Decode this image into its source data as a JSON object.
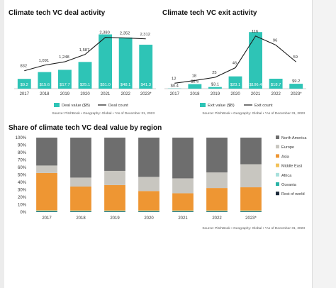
{
  "colors": {
    "teal": "#2ec4b6",
    "line": "#1a1a1a",
    "north_america": "#6e6e6e",
    "europe": "#c8c6c0",
    "asia": "#ee9633",
    "middle_east": "#f2c25a",
    "africa": "#a8e0dc",
    "oceania": "#2ab3a6",
    "rest_of_world": "#1b2a3a"
  },
  "chart_data": [
    {
      "type": "bar",
      "title": "Climate tech VC deal activity",
      "categories": [
        "2017",
        "2018",
        "2019",
        "2020",
        "2021",
        "2022",
        "2023*"
      ],
      "series": [
        {
          "name": "Deal value ($B)",
          "values": [
            9.2,
            15.6,
            17.7,
            25.1,
            51.0,
            48.1,
            41.3
          ],
          "labels": [
            "$9.2",
            "$15.6",
            "$17.7",
            "$25.1",
            "$51.0",
            "$48.1",
            "$41.3"
          ]
        },
        {
          "name": "Deal count",
          "type": "line",
          "values": [
            832,
            1091,
            1248,
            1587,
            2380,
            2352,
            2312
          ],
          "labels": [
            "832",
            "1,091",
            "1,248",
            "1,587",
            "2,380",
            "2,352",
            "2,312"
          ]
        }
      ],
      "ylim_bars": [
        0,
        60
      ],
      "ylim_line": [
        0,
        2600
      ],
      "legend": "bottom",
      "source": "Source: PitchBook • Geography: Global • *As of December 31, 2023"
    },
    {
      "type": "bar",
      "title": "Climate tech VC exit activity",
      "categories": [
        "2017",
        "2018",
        "2019",
        "2020",
        "2021",
        "2022",
        "2023*"
      ],
      "series": [
        {
          "name": "Exit value ($B)",
          "values": [
            0.4,
            8.6,
            3.1,
            23.1,
            106.4,
            18.7,
            9.2
          ],
          "labels": [
            "$0.4",
            "$8.6",
            "$3.1",
            "$23.1",
            "$106.4",
            "$18.7",
            "$9.2"
          ]
        },
        {
          "name": "Exit count",
          "type": "line",
          "values": [
            12,
            18,
            25,
            46,
            116,
            96,
            59
          ],
          "labels": [
            "12",
            "18",
            "25",
            "46",
            "116",
            "96",
            "59"
          ]
        }
      ],
      "ylim_bars": [
        0,
        120
      ],
      "ylim_line": [
        0,
        125
      ],
      "legend": "bottom",
      "source": "Source: PitchBook • Geography: Global • *As of December 31, 2023"
    },
    {
      "type": "bar",
      "stacked": true,
      "percent": true,
      "title": "Share of climate tech VC deal value by region",
      "categories": [
        "2017",
        "2018",
        "2019",
        "2020",
        "2021",
        "2022",
        "2023*"
      ],
      "yticks": [
        "0%",
        "10%",
        "20%",
        "30%",
        "40%",
        "50%",
        "60%",
        "70%",
        "80%",
        "90%",
        "100%"
      ],
      "series": [
        {
          "name": "Rest of world",
          "color": "#1b2a3a",
          "values": [
            0.5,
            0.5,
            0.5,
            0.5,
            0.5,
            0.5,
            0.5
          ]
        },
        {
          "name": "Oceania",
          "color": "#2ab3a6",
          "values": [
            1.0,
            0.8,
            0.8,
            0.8,
            0.8,
            0.8,
            0.8
          ]
        },
        {
          "name": "Africa",
          "color": "#a8e0dc",
          "values": [
            0.5,
            0.5,
            0.5,
            0.5,
            0.5,
            0.5,
            0.5
          ]
        },
        {
          "name": "Middle East",
          "color": "#f2c25a",
          "values": [
            0.5,
            0.5,
            0.5,
            0.5,
            0.5,
            0.5,
            0.5
          ]
        },
        {
          "name": "Asia",
          "color": "#ee9633",
          "values": [
            50.0,
            32.0,
            34.0,
            26.0,
            23.0,
            30.0,
            31.0
          ]
        },
        {
          "name": "Europe",
          "color": "#c8c6c0",
          "values": [
            10.0,
            12.0,
            19.0,
            19.0,
            20.0,
            21.0,
            31.0
          ]
        },
        {
          "name": "North America",
          "color": "#6e6e6e",
          "values": [
            37.5,
            53.7,
            44.7,
            52.7,
            54.7,
            46.7,
            35.7
          ]
        }
      ],
      "legend": "right",
      "source": "Source: PitchBook • Geography: Global • *As of December 31, 2023"
    }
  ]
}
